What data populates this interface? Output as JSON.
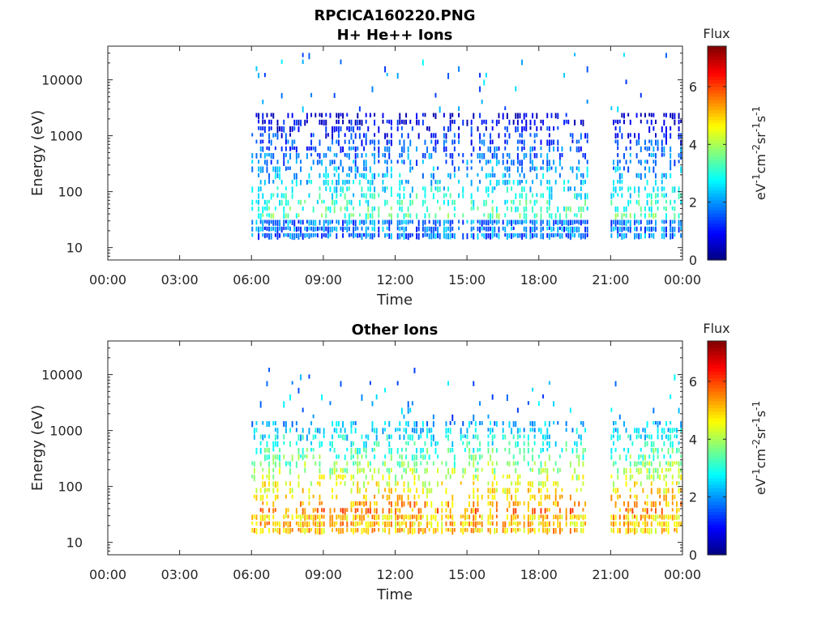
{
  "chart_data": [
    {
      "type": "heatmap",
      "title": "RPCICA160220.PNG",
      "subtitle": "H+ He++ Ions",
      "xlabel": "Time",
      "ylabel": "Energy (eV)",
      "x_ticks": [
        "00:00",
        "03:00",
        "06:00",
        "09:00",
        "12:00",
        "15:00",
        "18:00",
        "21:00",
        "00:00"
      ],
      "xlim_hours": [
        0,
        24
      ],
      "y_scale": "log",
      "y_ticks": [
        10,
        100,
        1000,
        10000
      ],
      "y_tick_labels": [
        "10",
        "100",
        "1000",
        "10000"
      ],
      "ylim": [
        6,
        40000
      ],
      "colorbar": {
        "label": "Flux",
        "units": "eV-1cm-2sr-1s-1",
        "ticks": [
          0,
          2,
          4,
          6
        ],
        "tick_labels": [
          "0",
          "2",
          "4",
          "6"
        ],
        "range": [
          0,
          7.4
        ],
        "colormap": "jet"
      },
      "data_segments_hours": [
        [
          6.0,
          20.0
        ],
        [
          21.0,
          23.95
        ]
      ],
      "core_energy_band_eV": [
        15,
        2500
      ],
      "typical_flux_range": [
        0.5,
        3.5
      ],
      "low_energy_band_eV": [
        15,
        30
      ],
      "low_energy_flux": 1.8,
      "sparse_high_energy_eV": [
        2500,
        30000
      ],
      "grid": false
    },
    {
      "type": "heatmap",
      "title": "Other Ions",
      "xlabel": "Time",
      "ylabel": "Energy (eV)",
      "x_ticks": [
        "00:00",
        "03:00",
        "06:00",
        "09:00",
        "12:00",
        "15:00",
        "18:00",
        "21:00",
        "00:00"
      ],
      "xlim_hours": [
        0,
        24
      ],
      "y_scale": "log",
      "y_ticks": [
        10,
        100,
        1000,
        10000
      ],
      "y_tick_labels": [
        "10",
        "100",
        "1000",
        "10000"
      ],
      "ylim": [
        6,
        40000
      ],
      "colorbar": {
        "label": "Flux",
        "units": "eV-1cm-2sr-1s-1",
        "ticks": [
          0,
          2,
          4,
          6
        ],
        "tick_labels": [
          "0",
          "2",
          "4",
          "6"
        ],
        "range": [
          0,
          7.4
        ],
        "colormap": "jet"
      },
      "data_segments_hours": [
        [
          6.0,
          20.0
        ],
        [
          21.0,
          23.95
        ]
      ],
      "core_energy_band_eV": [
        12,
        1500
      ],
      "typical_flux_range": [
        2.0,
        5.5
      ],
      "low_energy_band_eV": [
        12,
        35
      ],
      "low_energy_flux": 5.0,
      "sparse_high_energy_eV": [
        1500,
        12000
      ],
      "grid": false
    }
  ]
}
